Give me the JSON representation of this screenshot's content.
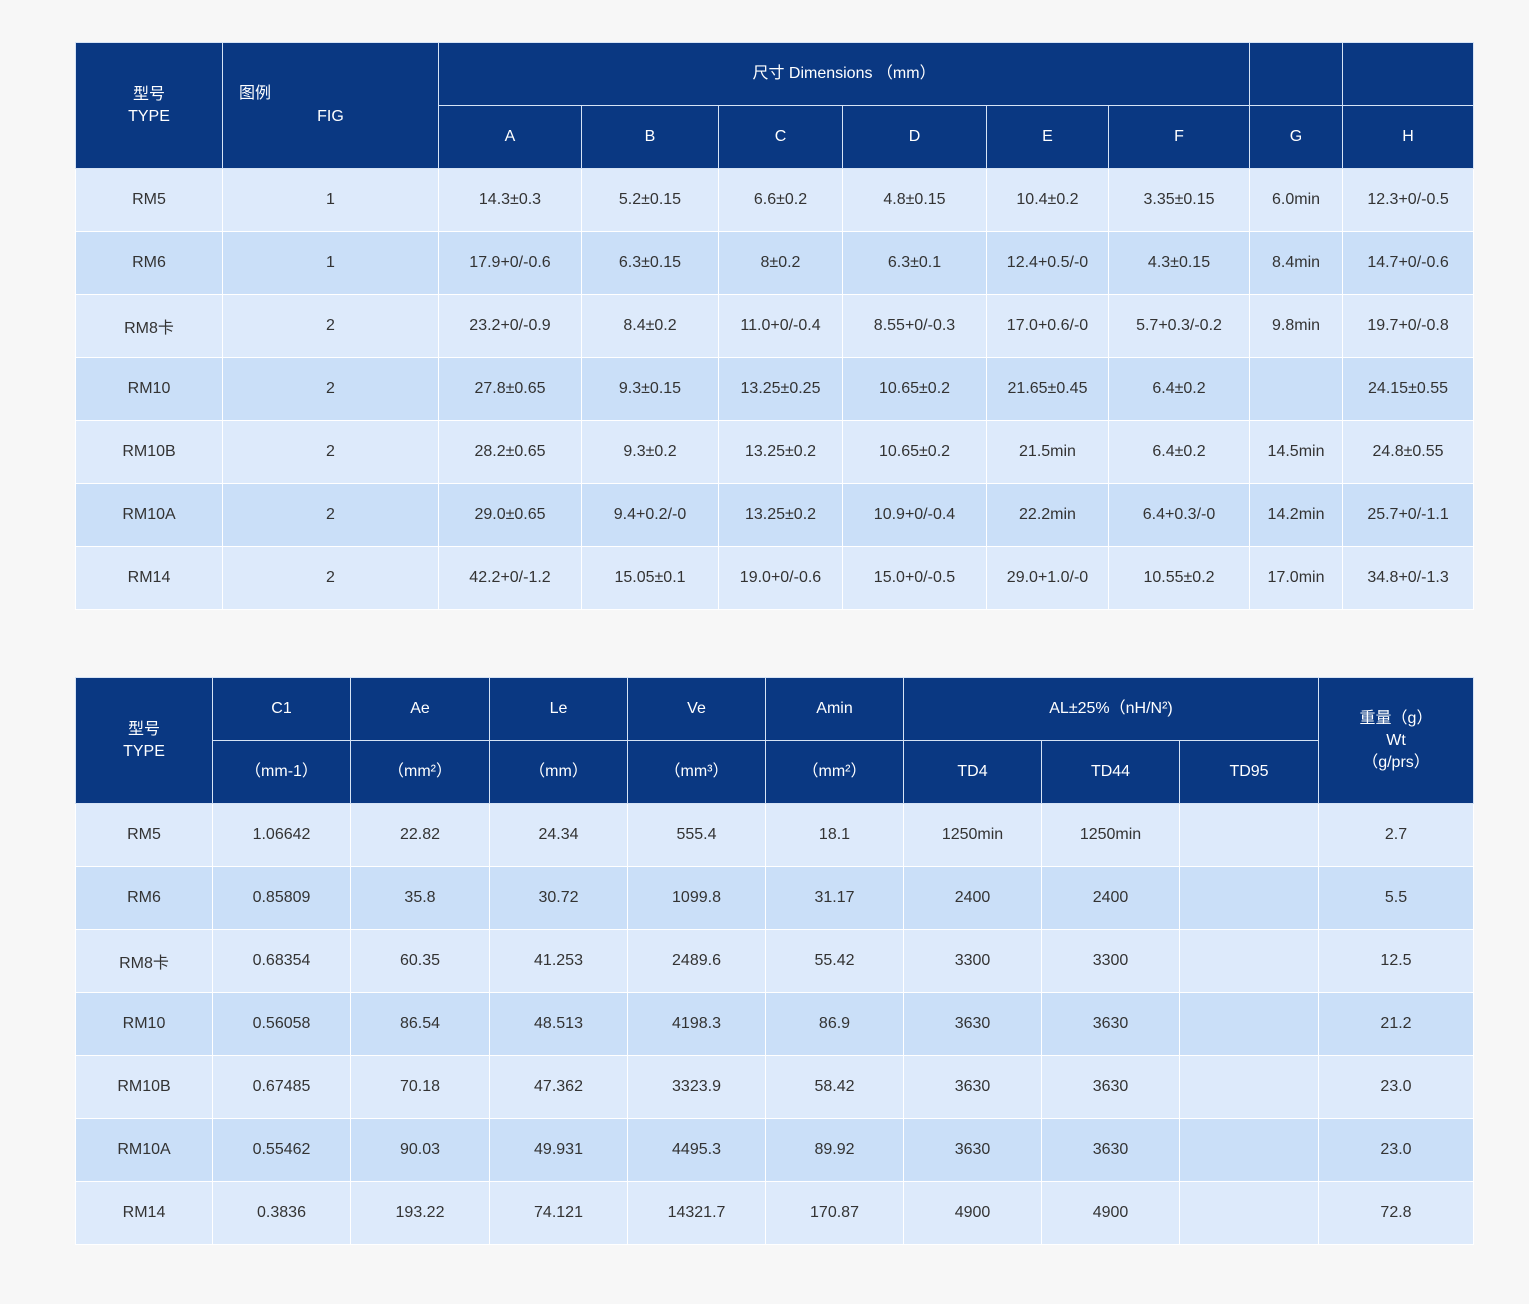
{
  "table1": {
    "type_header_cn": "型号",
    "type_header_en": "TYPE",
    "fig_header_cn": "图例",
    "fig_header_en": "FIG",
    "dimensions_header": "尺寸  Dimensions （mm）",
    "columns": [
      "A",
      "B",
      "C",
      "D",
      "E",
      "F",
      "G",
      "H"
    ],
    "rows": [
      [
        "RM5",
        "1",
        "14.3±0.3",
        "5.2±0.15",
        "6.6±0.2",
        "4.8±0.15",
        "10.4±0.2",
        "3.35±0.15",
        "6.0min",
        "12.3+0/-0.5"
      ],
      [
        "RM6",
        "1",
        "17.9+0/-0.6",
        "6.3±0.15",
        "8±0.2",
        "6.3±0.1",
        "12.4+0.5/-0",
        "4.3±0.15",
        "8.4min",
        "14.7+0/-0.6"
      ],
      [
        "RM8卡",
        "2",
        "23.2+0/-0.9",
        "8.4±0.2",
        "11.0+0/-0.4",
        "8.55+0/-0.3",
        "17.0+0.6/-0",
        "5.7+0.3/-0.2",
        "9.8min",
        "19.7+0/-0.8"
      ],
      [
        "RM10",
        "2",
        "27.8±0.65",
        "9.3±0.15",
        "13.25±0.25",
        "10.65±0.2",
        "21.65±0.45",
        "6.4±0.2",
        "",
        "24.15±0.55"
      ],
      [
        "RM10B",
        "2",
        "28.2±0.65",
        "9.3±0.2",
        "13.25±0.2",
        "10.65±0.2",
        "21.5min",
        "6.4±0.2",
        "14.5min",
        "24.8±0.55"
      ],
      [
        "RM10A",
        "2",
        "29.0±0.65",
        "9.4+0.2/-0",
        "13.25±0.2",
        "10.9+0/-0.4",
        "22.2min",
        "6.4+0.3/-0",
        "14.2min",
        "25.7+0/-1.1"
      ],
      [
        "RM14",
        "2",
        "42.2+0/-1.2",
        "15.05±0.1",
        "19.0+0/-0.6",
        "15.0+0/-0.5",
        "29.0+1.0/-0",
        "10.55±0.2",
        "17.0min",
        "34.8+0/-1.3"
      ]
    ]
  },
  "table2": {
    "type_header_cn": "型号",
    "type_header_en": "TYPE",
    "param_headers": [
      {
        "name": "C1",
        "unit": "（mm-1）"
      },
      {
        "name": "Ae",
        "unit": "（mm²）"
      },
      {
        "name": "Le",
        "unit": "（mm）"
      },
      {
        "name": "Ve",
        "unit": "（mm³）"
      },
      {
        "name": "Amin",
        "unit": "（mm²）"
      }
    ],
    "al_header": "AL±25%（nH/N²)",
    "al_columns": [
      "TD4",
      "TD44",
      "TD95"
    ],
    "weight_header_cn": "重量（g）",
    "weight_header_en": "Wt",
    "weight_header_unit": "（g/prs）",
    "rows": [
      [
        "RM5",
        "1.06642",
        "22.82",
        "24.34",
        "555.4",
        "18.1",
        "1250min",
        "1250min",
        "",
        "2.7"
      ],
      [
        "RM6",
        "0.85809",
        "35.8",
        "30.72",
        "1099.8",
        "31.17",
        "2400",
        "2400",
        "",
        "5.5"
      ],
      [
        "RM8卡",
        "0.68354",
        "60.35",
        "41.253",
        "2489.6",
        "55.42",
        "3300",
        "3300",
        "",
        "12.5"
      ],
      [
        "RM10",
        "0.56058",
        "86.54",
        "48.513",
        "4198.3",
        "86.9",
        "3630",
        "3630",
        "",
        "21.2"
      ],
      [
        "RM10B",
        "0.67485",
        "70.18",
        "47.362",
        "3323.9",
        "58.42",
        "3630",
        "3630",
        "",
        "23.0"
      ],
      [
        "RM10A",
        "0.55462",
        "90.03",
        "49.931",
        "4495.3",
        "89.92",
        "3630",
        "3630",
        "",
        "23.0"
      ],
      [
        "RM14",
        "0.3836",
        "193.22",
        "74.121",
        "14321.7",
        "170.87",
        "4900",
        "4900",
        "",
        "72.8"
      ]
    ]
  }
}
